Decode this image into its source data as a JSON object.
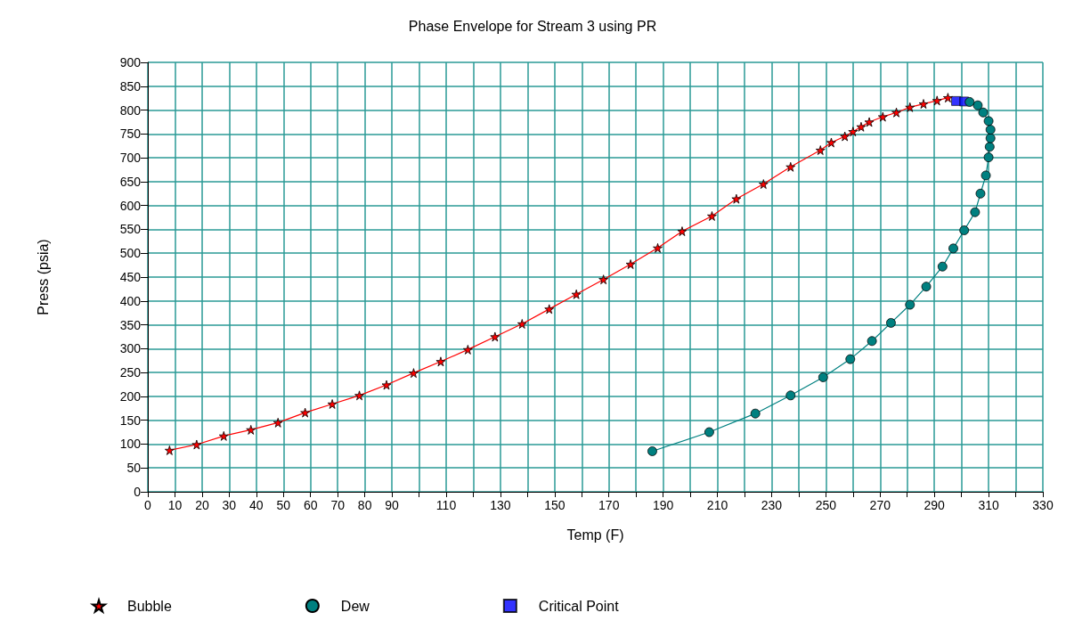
{
  "chart_data": {
    "type": "line",
    "title": "Phase Envelope for Stream 3 using PR",
    "xlabel": "Temp (F)",
    "ylabel": "Press (psia)",
    "xlim": [
      0,
      330
    ],
    "xticks": [
      0,
      10,
      20,
      30,
      40,
      50,
      60,
      70,
      80,
      90,
      {
        "value": 100,
        "label": null
      },
      110,
      {
        "value": 120,
        "label": null
      },
      130,
      {
        "value": 140,
        "label": null
      },
      150,
      {
        "value": 160,
        "label": null
      },
      170,
      {
        "value": 180,
        "label": null
      },
      190,
      {
        "value": 200,
        "label": null
      },
      210,
      {
        "value": 220,
        "label": null
      },
      230,
      {
        "value": 240,
        "label": null
      },
      250,
      {
        "value": 260,
        "label": null
      },
      270,
      {
        "value": 280,
        "label": null
      },
      290,
      {
        "value": 300,
        "label": null
      },
      310,
      {
        "value": 320,
        "label": null
      },
      330
    ],
    "ylim": [
      0,
      900
    ],
    "yticks": [
      0,
      50,
      100,
      150,
      200,
      250,
      300,
      350,
      400,
      450,
      500,
      550,
      600,
      650,
      700,
      750,
      800,
      850,
      900
    ],
    "grid": true,
    "legend": "bottom",
    "line_style": "solid",
    "series": [
      {
        "name": "Bubble",
        "marker": "star",
        "color": "#ff0000",
        "x": [
          8,
          18,
          28,
          38,
          48,
          58,
          68,
          78,
          88,
          98,
          108,
          118,
          128,
          138,
          148,
          158,
          168,
          178,
          188,
          197,
          208,
          217,
          227,
          237,
          248,
          252,
          257,
          260,
          263,
          266,
          271,
          276,
          281,
          286,
          291,
          295
        ],
        "values": [
          87,
          99,
          117,
          130,
          145,
          166,
          184,
          202,
          224,
          249,
          273,
          298,
          325,
          352,
          383,
          414,
          445,
          477,
          511,
          546,
          578,
          614,
          645,
          681,
          716,
          732,
          745,
          755,
          765,
          775,
          786,
          795,
          806,
          813,
          820,
          826
        ]
      },
      {
        "name": "Dew",
        "marker": "circle",
        "color": "#008080",
        "x": [
          186,
          207,
          224,
          237,
          249,
          259,
          267,
          274,
          281,
          287,
          293,
          297,
          301,
          305,
          307,
          309,
          310,
          310.4,
          310.7,
          310.7,
          310,
          308,
          306,
          303
        ],
        "values": [
          85,
          125,
          164,
          202,
          240,
          278,
          316,
          354,
          392,
          430,
          472,
          510,
          548,
          586,
          625,
          663,
          701,
          723,
          741,
          759,
          777,
          795,
          810,
          817
        ]
      },
      {
        "name": "Critical Point",
        "type": "scatter",
        "marker": "square",
        "color": "#0000ff",
        "x": [
          298,
          301
        ],
        "values": [
          819,
          818
        ]
      }
    ]
  }
}
